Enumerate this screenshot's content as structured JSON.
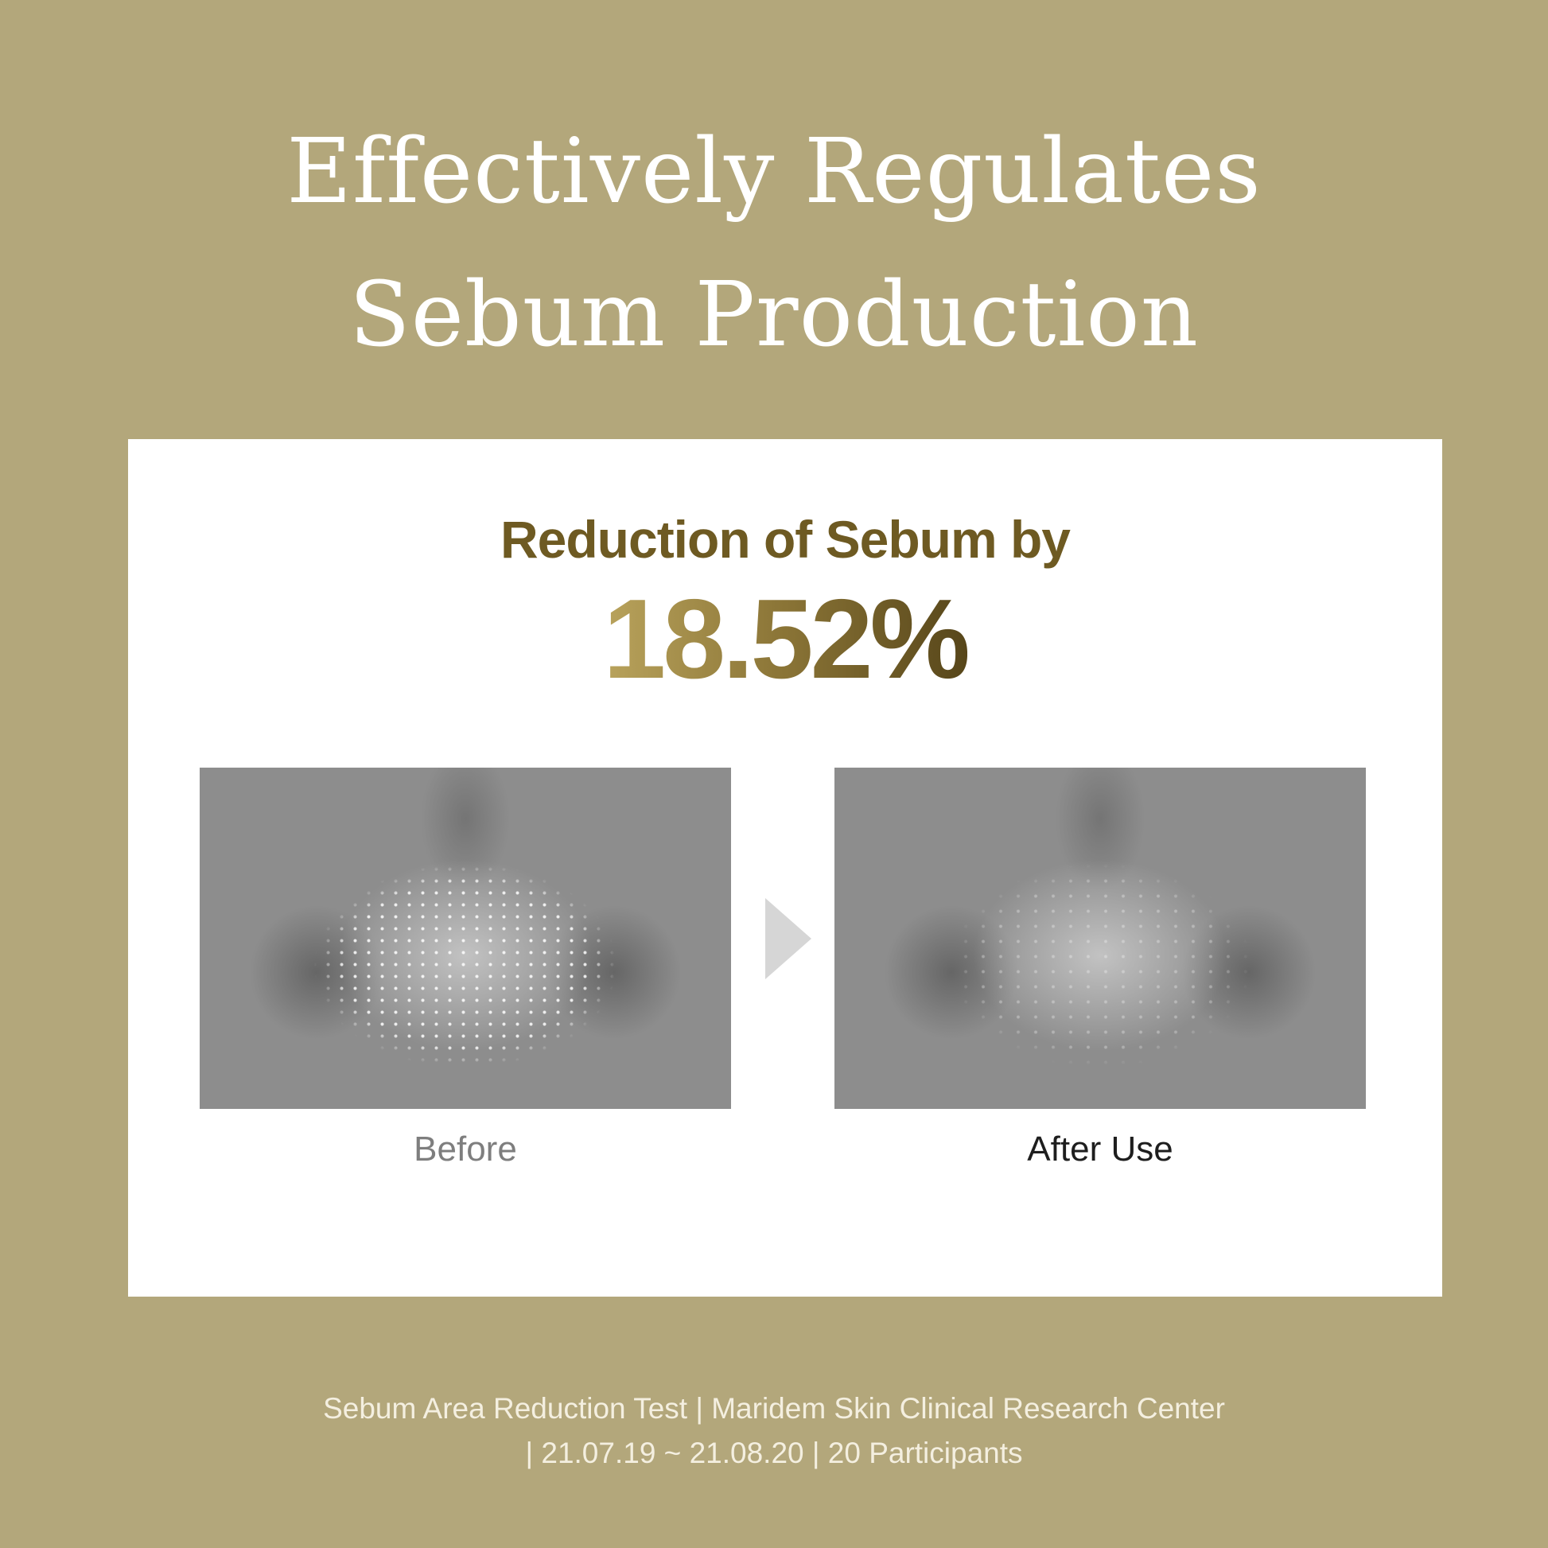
{
  "header": {
    "title_line1": "Effectively Regulates",
    "title_line2": "Sebum Production"
  },
  "card": {
    "subtitle": "Reduction of Sebum by",
    "percentage": "18.52%",
    "before_label": "Before",
    "after_label": "After Use",
    "arrow_icon": "triangle-right-icon"
  },
  "footer": {
    "line1": "Sebum Area Reduction Test | Maridem Skin Clinical Research Center",
    "line2": "| 21.07.19 ~ 21.08.20 | 20 Participants"
  },
  "colors": {
    "background": "#b3a77b",
    "accent_dark": "#6e5a22",
    "accent_light": "#b9a35c"
  }
}
